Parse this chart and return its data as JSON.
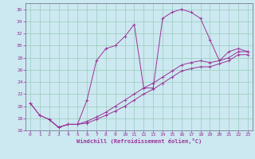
{
  "xlabel": "Windchill (Refroidissement éolien,°C)",
  "bg_color": "#cce8f0",
  "grid_color": "#99ccbb",
  "line_color": "#993399",
  "spine_color": "#666688",
  "xlim": [
    -0.5,
    23.5
  ],
  "ylim": [
    16,
    37
  ],
  "xticks": [
    0,
    1,
    2,
    3,
    4,
    5,
    6,
    7,
    8,
    9,
    10,
    11,
    12,
    13,
    14,
    15,
    16,
    17,
    18,
    19,
    20,
    21,
    22,
    23
  ],
  "yticks": [
    16,
    18,
    20,
    22,
    24,
    26,
    28,
    30,
    32,
    34,
    36
  ],
  "series1": [
    [
      0,
      20.5
    ],
    [
      1,
      18.5
    ],
    [
      2,
      17.8
    ],
    [
      3,
      16.5
    ],
    [
      4,
      17.0
    ],
    [
      5,
      17.0
    ],
    [
      6,
      21.0
    ],
    [
      7,
      27.5
    ],
    [
      8,
      29.5
    ],
    [
      9,
      30.0
    ],
    [
      10,
      31.5
    ],
    [
      11,
      33.5
    ],
    [
      12,
      23.0
    ],
    [
      13,
      23.0
    ],
    [
      14,
      34.5
    ],
    [
      15,
      35.5
    ],
    [
      16,
      36.0
    ],
    [
      17,
      35.5
    ],
    [
      18,
      34.5
    ],
    [
      19,
      31.0
    ],
    [
      20,
      27.5
    ],
    [
      21,
      29.0
    ],
    [
      22,
      29.5
    ],
    [
      23,
      29.0
    ]
  ],
  "series2": [
    [
      0,
      20.5
    ],
    [
      1,
      18.5
    ],
    [
      2,
      17.8
    ],
    [
      3,
      16.5
    ],
    [
      4,
      17.0
    ],
    [
      5,
      17.0
    ],
    [
      6,
      17.5
    ],
    [
      7,
      18.2
    ],
    [
      8,
      19.0
    ],
    [
      9,
      20.0
    ],
    [
      10,
      21.0
    ],
    [
      11,
      22.0
    ],
    [
      12,
      23.0
    ],
    [
      13,
      23.8
    ],
    [
      14,
      24.8
    ],
    [
      15,
      25.8
    ],
    [
      16,
      26.8
    ],
    [
      17,
      27.2
    ],
    [
      18,
      27.5
    ],
    [
      19,
      27.2
    ],
    [
      20,
      27.5
    ],
    [
      21,
      28.0
    ],
    [
      22,
      29.0
    ],
    [
      23,
      29.0
    ]
  ],
  "series3": [
    [
      2,
      17.8
    ],
    [
      3,
      16.5
    ],
    [
      4,
      17.0
    ],
    [
      5,
      17.0
    ],
    [
      6,
      17.2
    ],
    [
      7,
      17.8
    ],
    [
      8,
      18.5
    ],
    [
      9,
      19.2
    ],
    [
      10,
      20.0
    ],
    [
      11,
      21.0
    ],
    [
      12,
      22.0
    ],
    [
      13,
      22.8
    ],
    [
      14,
      23.8
    ],
    [
      15,
      24.8
    ],
    [
      16,
      25.8
    ],
    [
      17,
      26.2
    ],
    [
      18,
      26.5
    ],
    [
      19,
      26.5
    ],
    [
      20,
      27.0
    ],
    [
      21,
      27.5
    ],
    [
      22,
      28.5
    ],
    [
      23,
      28.5
    ]
  ]
}
